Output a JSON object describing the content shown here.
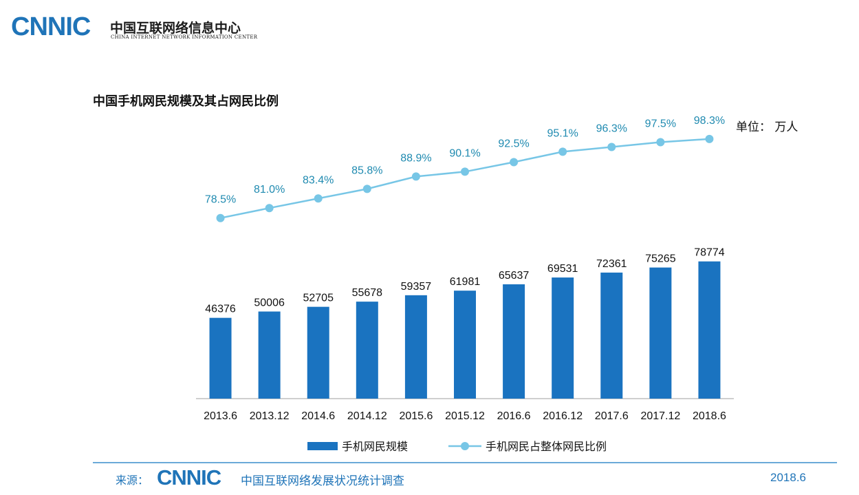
{
  "header": {
    "logo": "CNNIC",
    "org_name": "中国互联网络信息中心",
    "org_name_en": "CHINA INTERNET NETWORK INFORMATION CENTER"
  },
  "unit_label": "单位： 万人",
  "footer": {
    "source_label": "来源：",
    "logo": "CNNIC",
    "source_text": "中国互联网络发展状况统计调查",
    "date": "2018.6"
  },
  "colors": {
    "bar": "#1a73c0",
    "line": "#77c6e6",
    "line_label": "#1f8ab0",
    "brand": "#1f74b8"
  },
  "chart_data": {
    "type": "bar",
    "title": "中国手机网民规模及其占网民比例",
    "categories": [
      "2013.6",
      "2013.12",
      "2014.6",
      "2014.12",
      "2015.6",
      "2015.12",
      "2016.6",
      "2016.12",
      "2017.6",
      "2017.12",
      "2018.6"
    ],
    "series": [
      {
        "name": "手机网民规模",
        "type": "bar",
        "values": [
          46376,
          50006,
          52705,
          55678,
          59357,
          61981,
          65637,
          69531,
          72361,
          75265,
          78774
        ],
        "labels": [
          "46376",
          "50006",
          "52705",
          "55678",
          "59357",
          "61981",
          "65637",
          "69531",
          "72361",
          "75265",
          "78774"
        ]
      },
      {
        "name": "手机网民占整体网民比例",
        "type": "line",
        "values": [
          78.5,
          81.0,
          83.4,
          85.8,
          88.9,
          90.1,
          92.5,
          95.1,
          96.3,
          97.5,
          98.3
        ],
        "labels": [
          "78.5%",
          "81.0%",
          "83.4%",
          "85.8%",
          "88.9%",
          "90.1%",
          "92.5%",
          "95.1%",
          "96.3%",
          "97.5%",
          "98.3%"
        ]
      }
    ],
    "ylim": [
      0,
      100000
    ],
    "y2lim": [
      0,
      100
    ],
    "grid": false,
    "legend": "bottom-center"
  }
}
